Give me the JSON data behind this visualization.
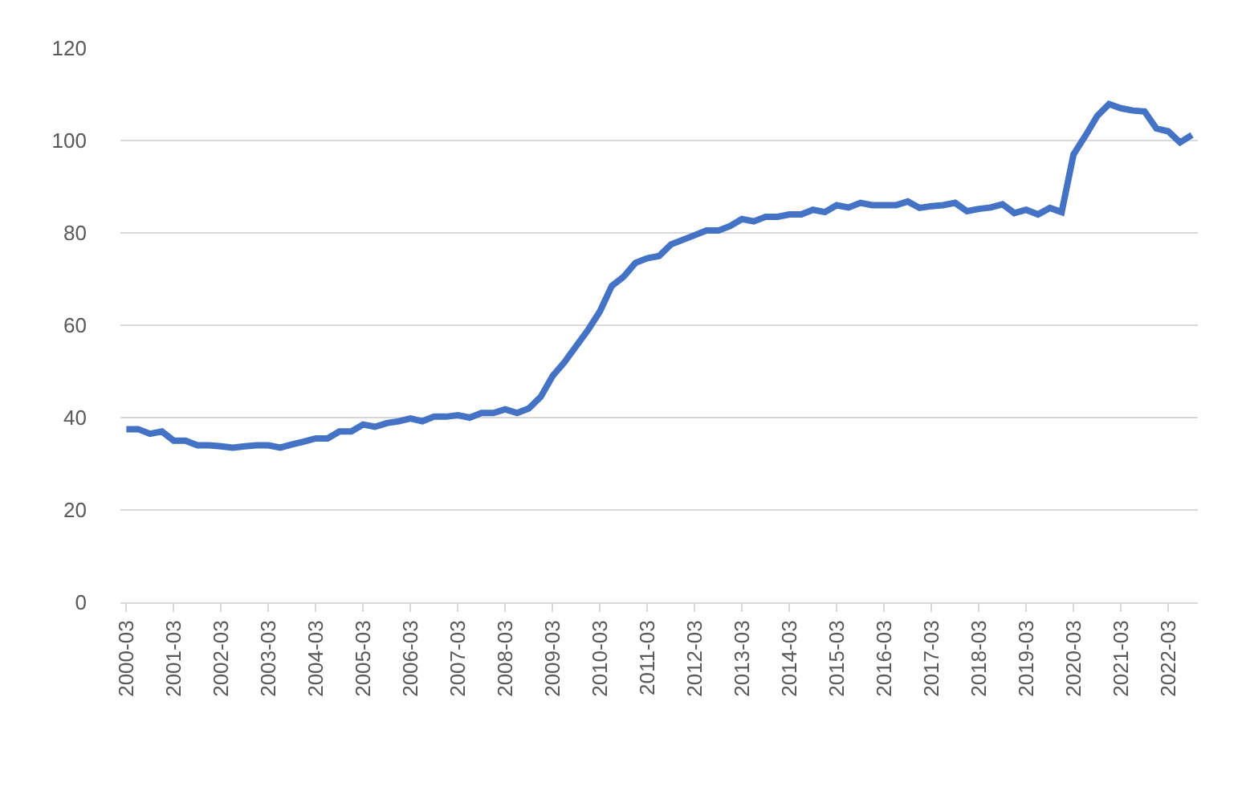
{
  "chart_data": {
    "type": "line",
    "categories": [
      "2000-03",
      null,
      null,
      null,
      "2001-03",
      null,
      null,
      null,
      "2002-03",
      null,
      null,
      null,
      "2003-03",
      null,
      null,
      null,
      "2004-03",
      null,
      null,
      null,
      "2005-03",
      null,
      null,
      null,
      "2006-03",
      null,
      null,
      null,
      "2007-03",
      null,
      null,
      null,
      "2008-03",
      null,
      null,
      null,
      "2009-03",
      null,
      null,
      null,
      "2010-03",
      null,
      null,
      null,
      "2011-03",
      null,
      null,
      null,
      "2012-03",
      null,
      null,
      null,
      "2013-03",
      null,
      null,
      null,
      "2014-03",
      null,
      null,
      null,
      "2015-03",
      null,
      null,
      null,
      "2016-03",
      null,
      null,
      null,
      "2017-03",
      null,
      null,
      null,
      "2018-03",
      null,
      null,
      null,
      "2019-03",
      null,
      null,
      null,
      "2020-03",
      null,
      null,
      null,
      "2021-03",
      null,
      null,
      null,
      "2022-03",
      null,
      null
    ],
    "series": [
      {
        "color": "#4472c4",
        "values": [
          37.5,
          37.5,
          36.5,
          37,
          35,
          35,
          34,
          34,
          33.8,
          33.5,
          33.8,
          34,
          34,
          33.5,
          34.2,
          34.8,
          35.5,
          35.5,
          37,
          37,
          38.5,
          38,
          38.8,
          39.2,
          39.8,
          39.2,
          40.2,
          40.2,
          40.5,
          40,
          41,
          41,
          41.8,
          41,
          42,
          44.5,
          49,
          52,
          55.5,
          59,
          63,
          68.5,
          70.5,
          73.5,
          74.5,
          75,
          77.5,
          78.5,
          79.5,
          80.5,
          80.5,
          81.5,
          83,
          82.5,
          83.5,
          83.5,
          84,
          84,
          85,
          84.5,
          86,
          85.5,
          86.5,
          86,
          86,
          86,
          86.8,
          85.4,
          85.8,
          86,
          86.5,
          84.7,
          85.2,
          85.5,
          86.2,
          84.3,
          85,
          84,
          85.4,
          84.5,
          97,
          101,
          105.3,
          107.9,
          107,
          106.5,
          106.3,
          102.6,
          102,
          99.6,
          101.2
        ]
      }
    ],
    "ylim": [
      0,
      120
    ],
    "yticks": [
      0,
      20,
      40,
      60,
      80,
      100,
      120
    ],
    "grid": "y",
    "marker": "none",
    "line_style": "solid"
  }
}
